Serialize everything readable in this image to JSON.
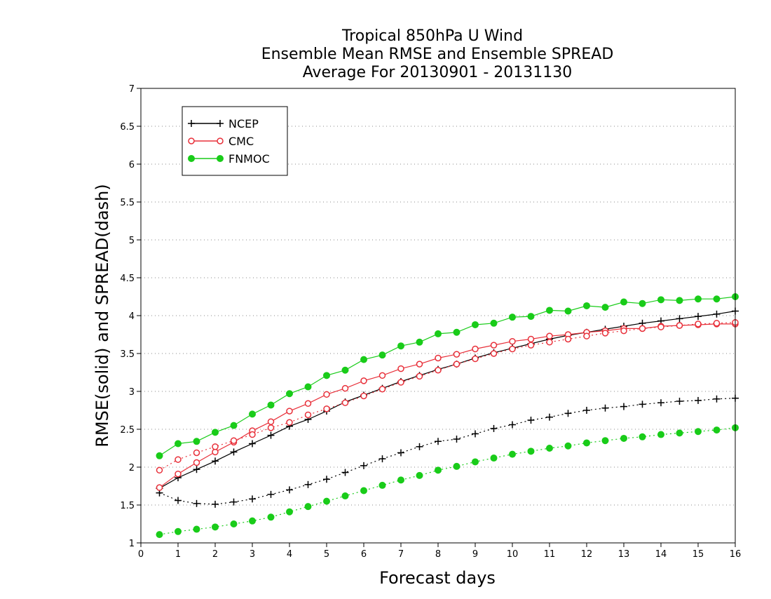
{
  "chart_data": {
    "type": "line",
    "title": [
      "Tropical 850hPa U Wind",
      "Ensemble Mean RMSE and Ensemble SPREAD",
      "Average For 20130901 - 20131130"
    ],
    "xlabel": "Forecast days",
    "ylabel": "RMSE(solid) and SPREAD(dash)",
    "xlim": [
      0,
      16
    ],
    "ylim": [
      1,
      7
    ],
    "xticks": [
      "0",
      "1",
      "2",
      "3",
      "4",
      "5",
      "6",
      "7",
      "8",
      "9",
      "10",
      "11",
      "12",
      "13",
      "14",
      "15",
      "16"
    ],
    "yticks": [
      "1",
      "1.5",
      "2",
      "2.5",
      "3",
      "3.5",
      "4",
      "4.5",
      "5",
      "5.5",
      "6",
      "6.5",
      "7"
    ],
    "grid": "horizontal dotted",
    "legend": {
      "placement": "top-left",
      "entries": [
        "NCEP",
        "CMC",
        "FNMOC"
      ]
    },
    "x": [
      0.5,
      1,
      1.5,
      2,
      2.5,
      3,
      3.5,
      4,
      4.5,
      5,
      5.5,
      6,
      6.5,
      7,
      7.5,
      8,
      8.5,
      9,
      9.5,
      10,
      10.5,
      11,
      11.5,
      12,
      12.5,
      13,
      13.5,
      14,
      14.5,
      15,
      15.5,
      16
    ],
    "series": [
      {
        "name": "NCEP",
        "kind": "rmse",
        "color": "#000000",
        "marker": "plus",
        "values": [
          1.72,
          1.86,
          1.97,
          2.08,
          2.2,
          2.31,
          2.42,
          2.54,
          2.63,
          2.74,
          2.86,
          2.95,
          3.04,
          3.13,
          3.21,
          3.29,
          3.36,
          3.44,
          3.51,
          3.57,
          3.63,
          3.69,
          3.74,
          3.78,
          3.82,
          3.86,
          3.9,
          3.93,
          3.96,
          3.99,
          4.02,
          4.06
        ]
      },
      {
        "name": "NCEP",
        "kind": "spread",
        "color": "#000000",
        "marker": "plus",
        "values": [
          1.66,
          1.56,
          1.52,
          1.51,
          1.54,
          1.58,
          1.64,
          1.7,
          1.77,
          1.84,
          1.93,
          2.02,
          2.11,
          2.19,
          2.27,
          2.34,
          2.37,
          2.44,
          2.51,
          2.56,
          2.62,
          2.66,
          2.71,
          2.75,
          2.78,
          2.8,
          2.83,
          2.85,
          2.87,
          2.88,
          2.9,
          2.91
        ]
      },
      {
        "name": "CMC",
        "kind": "rmse",
        "color": "#e8303a",
        "marker": "open-circle",
        "values": [
          1.73,
          1.91,
          2.06,
          2.2,
          2.33,
          2.48,
          2.6,
          2.74,
          2.84,
          2.96,
          3.04,
          3.14,
          3.21,
          3.3,
          3.36,
          3.44,
          3.49,
          3.56,
          3.61,
          3.66,
          3.69,
          3.73,
          3.75,
          3.78,
          3.8,
          3.83,
          3.83,
          3.86,
          3.87,
          3.88,
          3.89,
          3.89
        ]
      },
      {
        "name": "CMC",
        "kind": "spread",
        "color": "#e8303a",
        "marker": "open-circle",
        "values": [
          1.96,
          2.1,
          2.19,
          2.27,
          2.35,
          2.43,
          2.52,
          2.59,
          2.69,
          2.77,
          2.85,
          2.94,
          3.03,
          3.12,
          3.2,
          3.28,
          3.36,
          3.43,
          3.5,
          3.56,
          3.61,
          3.65,
          3.69,
          3.73,
          3.77,
          3.8,
          3.83,
          3.85,
          3.87,
          3.89,
          3.9,
          3.91
        ]
      },
      {
        "name": "FNMOC",
        "kind": "rmse",
        "color": "#19cc19",
        "marker": "filled-circle",
        "values": [
          2.15,
          2.31,
          2.34,
          2.46,
          2.55,
          2.7,
          2.82,
          2.97,
          3.06,
          3.21,
          3.28,
          3.42,
          3.48,
          3.6,
          3.65,
          3.76,
          3.78,
          3.88,
          3.9,
          3.98,
          3.99,
          4.07,
          4.06,
          4.13,
          4.11,
          4.18,
          4.16,
          4.21,
          4.2,
          4.22,
          4.22,
          4.25
        ]
      },
      {
        "name": "FNMOC",
        "kind": "spread",
        "color": "#19cc19",
        "marker": "filled-circle",
        "values": [
          1.11,
          1.15,
          1.18,
          1.21,
          1.25,
          1.29,
          1.34,
          1.41,
          1.48,
          1.55,
          1.62,
          1.69,
          1.76,
          1.83,
          1.89,
          1.96,
          2.01,
          2.07,
          2.12,
          2.17,
          2.21,
          2.25,
          2.28,
          2.32,
          2.35,
          2.38,
          2.4,
          2.43,
          2.45,
          2.47,
          2.49,
          2.52
        ]
      }
    ]
  }
}
